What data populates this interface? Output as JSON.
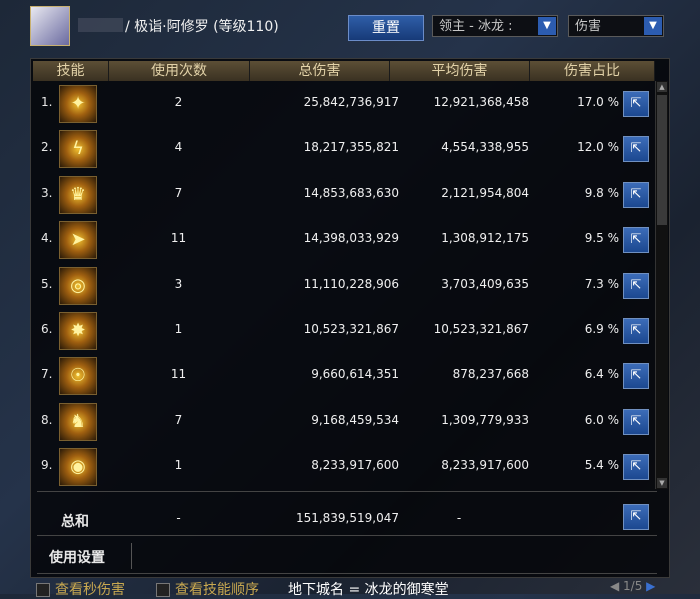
{
  "header": {
    "character_name": "/ 极诣·阿修罗 (等级110)",
    "reset_label": "重置",
    "boss_select": "领主 - 冰龙 :",
    "type_select": "伤害"
  },
  "columns": [
    "技能",
    "使用次数",
    "总伤害",
    "平均伤害",
    "伤害占比"
  ],
  "rows": [
    {
      "idx": "1.",
      "uses": "2",
      "total": "25,842,736,917",
      "avg": "12,921,368,458",
      "pct": "17.0 %"
    },
    {
      "idx": "2.",
      "uses": "4",
      "total": "18,217,355,821",
      "avg": "4,554,338,955",
      "pct": "12.0 %"
    },
    {
      "idx": "3.",
      "uses": "7",
      "total": "14,853,683,630",
      "avg": "2,121,954,804",
      "pct": "9.8 %"
    },
    {
      "idx": "4.",
      "uses": "11",
      "total": "14,398,033,929",
      "avg": "1,308,912,175",
      "pct": "9.5 %"
    },
    {
      "idx": "5.",
      "uses": "3",
      "total": "11,110,228,906",
      "avg": "3,703,409,635",
      "pct": "7.3 %"
    },
    {
      "idx": "6.",
      "uses": "1",
      "total": "10,523,321,867",
      "avg": "10,523,321,867",
      "pct": "6.9 %"
    },
    {
      "idx": "7.",
      "uses": "11",
      "total": "9,660,614,351",
      "avg": "878,237,668",
      "pct": "6.4 %"
    },
    {
      "idx": "8.",
      "uses": "7",
      "total": "9,168,459,534",
      "avg": "1,309,779,933",
      "pct": "6.0 %"
    },
    {
      "idx": "9.",
      "uses": "1",
      "total": "8,233,917,600",
      "avg": "8,233,917,600",
      "pct": "5.4 %"
    }
  ],
  "total": {
    "label": "总和",
    "uses": "-",
    "total": "151,839,519,047",
    "avg": "-"
  },
  "settings_label": "使用设置",
  "footer": {
    "check1": "查看秒伤害",
    "check2": "查看技能顺序",
    "dungeon": "地下城名 = 冰龙的御寒堂",
    "page": "1/5"
  }
}
